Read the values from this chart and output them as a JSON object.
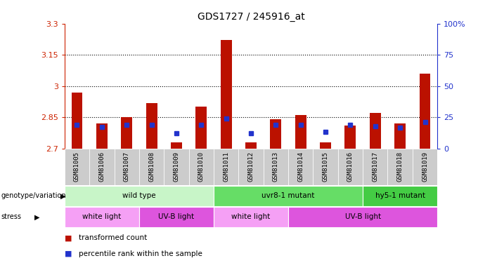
{
  "title": "GDS1727 / 245916_at",
  "samples": [
    "GSM81005",
    "GSM81006",
    "GSM81007",
    "GSM81008",
    "GSM81009",
    "GSM81010",
    "GSM81011",
    "GSM81012",
    "GSM81013",
    "GSM81014",
    "GSM81015",
    "GSM81016",
    "GSM81017",
    "GSM81018",
    "GSM81019"
  ],
  "red_values": [
    2.97,
    2.82,
    2.85,
    2.92,
    2.73,
    2.9,
    3.22,
    2.73,
    2.84,
    2.86,
    2.73,
    2.81,
    2.87,
    2.82,
    3.06
  ],
  "blue_values": [
    2.815,
    2.805,
    2.815,
    2.815,
    2.775,
    2.815,
    2.845,
    2.775,
    2.815,
    2.815,
    2.782,
    2.815,
    2.808,
    2.8,
    2.828
  ],
  "ymin": 2.7,
  "ymax": 3.3,
  "yticks_left": [
    2.7,
    2.85,
    3.0,
    3.15,
    3.3
  ],
  "ytick_labels_left": [
    "2.7",
    "2.85",
    "3",
    "3.15",
    "3.3"
  ],
  "yticks_right_pct": [
    0,
    25,
    50,
    75,
    100
  ],
  "ytick_labels_right": [
    "0",
    "25",
    "50",
    "75",
    "100%"
  ],
  "hlines": [
    2.85,
    3.0,
    3.15
  ],
  "bar_bottom": 2.7,
  "genotype_groups": [
    {
      "label": "wild type",
      "start": 0,
      "end": 6,
      "color": "#c8f5c8"
    },
    {
      "label": "uvr8-1 mutant",
      "start": 6,
      "end": 12,
      "color": "#66dd66"
    },
    {
      "label": "hy5-1 mutant",
      "start": 12,
      "end": 15,
      "color": "#44cc44"
    }
  ],
  "stress_groups": [
    {
      "label": "white light",
      "start": 0,
      "end": 3,
      "color": "#f5a0f5"
    },
    {
      "label": "UV-B light",
      "start": 3,
      "end": 6,
      "color": "#dd55dd"
    },
    {
      "label": "white light",
      "start": 6,
      "end": 9,
      "color": "#f5a0f5"
    },
    {
      "label": "UV-B light",
      "start": 9,
      "end": 15,
      "color": "#dd55dd"
    }
  ],
  "bar_color": "#bb1100",
  "blue_color": "#2233cc",
  "bg_color": "#cccccc",
  "left_tick_color": "#cc2200",
  "right_tick_color": "#2233cc",
  "bar_width": 0.45
}
